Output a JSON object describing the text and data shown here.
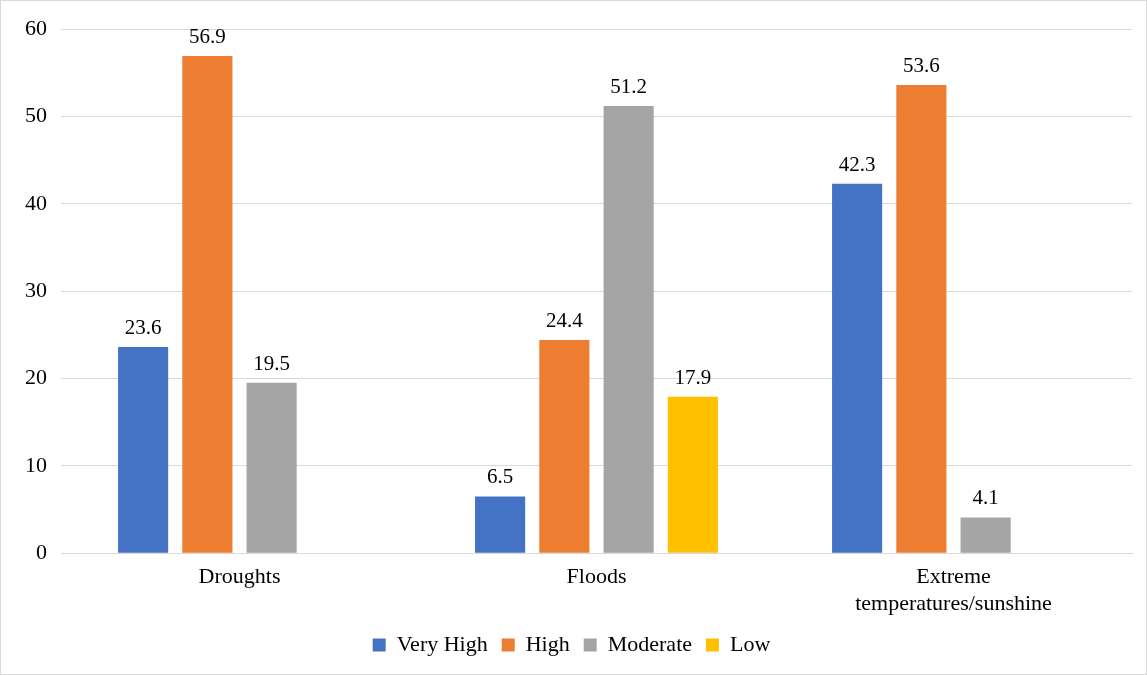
{
  "chart_data": {
    "type": "bar",
    "categories": [
      "Droughts",
      "Floods",
      "Extreme temperatures/sunshine"
    ],
    "series": [
      {
        "name": "Very High",
        "color": "#4472c4",
        "values": [
          23.6,
          6.5,
          42.3
        ]
      },
      {
        "name": "High",
        "color": "#ed7d31",
        "values": [
          56.9,
          24.4,
          53.6
        ]
      },
      {
        "name": "Moderate",
        "color": "#a5a5a5",
        "values": [
          19.5,
          51.2,
          4.1
        ]
      },
      {
        "name": "Low",
        "color": "#ffc000",
        "values": [
          null,
          17.9,
          null
        ]
      }
    ],
    "ylim": [
      0,
      60
    ],
    "yticks": [
      0,
      10,
      20,
      30,
      40,
      50,
      60
    ],
    "grid": "y",
    "legend": "bottom",
    "data_labels": true
  }
}
